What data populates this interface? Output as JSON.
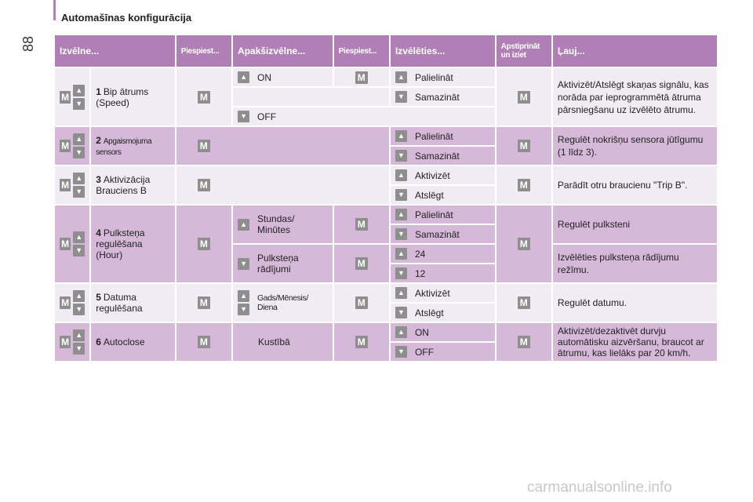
{
  "page": {
    "number": "88",
    "title": "Automašīnas konfigurācija",
    "watermark": "carmanualsonline.info"
  },
  "columns": [
    "Izvēlne...",
    "Piespiest...",
    "Apakšizvēlne...",
    "Piespiest...",
    "Izvēlēties...",
    "Apstiprināt un iziet",
    "Ļauj..."
  ],
  "rows": {
    "r1": {
      "num": "1",
      "label": "Bip ātrums (Speed)",
      "sub_on": "ON",
      "sub_off": "OFF",
      "opt1": "Palielināt",
      "opt2": "Samazināt",
      "desc": "Aktivizēt/Atslēgt skaņas signālu, kas norāda par ieprogrammētā ātruma pārsniegšanu uz izvēlēto ātrumu."
    },
    "r2": {
      "num": "2",
      "label": "Apgaismojuma sensors",
      "opt1": "Palielināt",
      "opt2": "Samazināt",
      "desc": "Regulēt nokrišņu sensora jūtīgumu (1 līdz 3)."
    },
    "r3": {
      "num": "3",
      "label": "Aktivizācija Brauciens B",
      "opt1": "Aktivizēt",
      "opt2": "Atslēgt",
      "desc": "Parādīt otru braucienu \"Trip B\"."
    },
    "r4": {
      "num": "4",
      "label": "Pulksteņa regulēšana (Hour)",
      "sub1": "Stundas/ Minūtes",
      "sub2": "Pulksteņa rādījumi",
      "opt1": "Palielināt",
      "opt2": "Samazināt",
      "opt3": "24",
      "opt4": "12",
      "desc1": "Regulēt pulksteni",
      "desc2": "Izvēlēties pulksteņa rādījumu režīmu."
    },
    "r5": {
      "num": "5",
      "label": "Datuma regulēšana",
      "sub": "Gads/Mēnesis/ Diena",
      "opt1": "Aktivizēt",
      "opt2": "Atslēgt",
      "desc": "Regulēt datumu."
    },
    "r6": {
      "num": "6",
      "label": "Autoclose",
      "sub": "Kustībā",
      "opt1": "ON",
      "opt2": "OFF",
      "desc": "Aktivizēt/dezaktivēt durvju automātisku aizvēršanu, braucot ar ātrumu, kas lielāks par 20 km/h."
    }
  },
  "icons": {
    "m": "M",
    "up": "▲",
    "down": "▼"
  }
}
